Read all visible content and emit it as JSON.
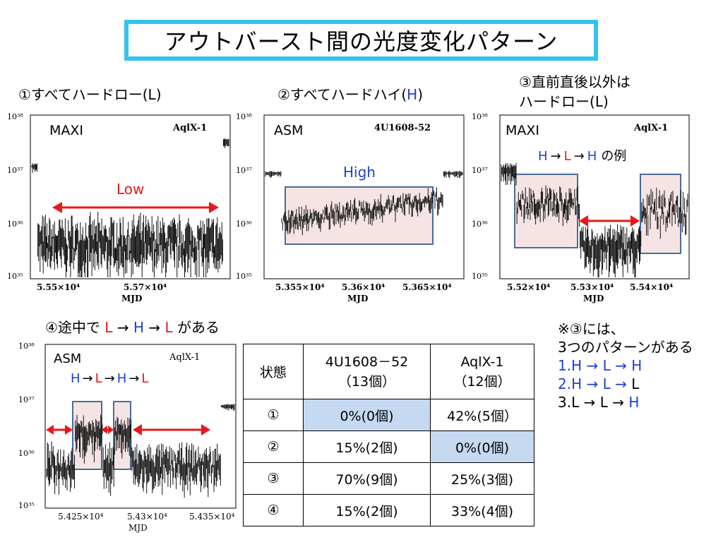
{
  "title": "アウトバースト間の光度変化パターン",
  "labels": {
    "p1": {
      "prefix": "①すべてハードロー(",
      "code": "L",
      "suffix": ")"
    },
    "p2": {
      "prefix": "②すべてハードハイ(",
      "code": "H",
      "suffix": ")"
    },
    "p3_line1": "③直前直後以外は",
    "p3_line2": {
      "prefix": "ハードロー(",
      "code": "L",
      "suffix": ")"
    },
    "p4": {
      "prefix": "④途中で",
      "s1": "L",
      "a1": "→",
      "s2": "H",
      "a2": "→",
      "s3": "L",
      "suffix": "がある"
    }
  },
  "colors": {
    "frame": "#35c3ee",
    "box_border": "#4a6c9a",
    "box_fill": "#f6e4e4",
    "arrow": "#e81818",
    "blue": "#1f3fd0",
    "highlight": "#c5d9f1"
  },
  "chart_data": [
    {
      "type": "scatter",
      "instrument": "MAXI",
      "source": "AqlX-1",
      "ylabel_ticks": [
        "10³⁸",
        "10³⁷",
        "10³⁶",
        "10³⁵"
      ],
      "y_exponents": [
        38,
        37,
        36,
        35
      ],
      "xlabel": "MJD",
      "x_ticks": [
        "5.55×10⁴",
        "5.57×10⁴"
      ],
      "annotation": "Low"
    },
    {
      "type": "scatter",
      "instrument": "ASM",
      "source": "4U1608-52",
      "ylabel_ticks": [
        "10³⁸",
        "10³⁷",
        "10³⁶",
        "10³⁵"
      ],
      "y_exponents": [
        38,
        37,
        36,
        35
      ],
      "xlabel": "MJD",
      "x_ticks": [
        "5.355×10⁴",
        "5.36×10⁴",
        "5.365×10⁴"
      ],
      "annotation": "High"
    },
    {
      "type": "scatter",
      "instrument": "MAXI",
      "source": "AqlX-1",
      "ylabel_ticks": [
        "10³⁸",
        "10³⁷",
        "10³⁶",
        "10³⁵"
      ],
      "y_exponents": [
        38,
        37,
        36,
        35
      ],
      "xlabel": "MJD",
      "x_ticks": [
        "5.52×10⁴",
        "5.53×10⁴",
        "5.54×10⁴"
      ],
      "annotation": {
        "s1": "H",
        "a1": "→",
        "s2": "L",
        "a2": "→",
        "s3": "H",
        "tail": "の例"
      }
    },
    {
      "type": "scatter",
      "instrument": "ASM",
      "source": "AqlX-1",
      "ylabel_ticks": [
        "10³⁸",
        "10³⁷",
        "10³⁶",
        "10³⁵"
      ],
      "y_exponents": [
        38,
        37,
        36,
        35
      ],
      "xlabel": "MJD",
      "x_ticks": [
        "5.425×10⁴",
        "5.43×10⁴",
        "5.435×10⁴"
      ],
      "annotation": {
        "s1": "H",
        "a1": "→",
        "s2": "L",
        "a2": "→",
        "s3": "H",
        "a3": "→",
        "s4": "L"
      }
    }
  ],
  "table": {
    "header": [
      "状態",
      "4U1608－52\n（13個）",
      "AqlX-1\n（12個）"
    ],
    "rows": [
      {
        "state": "①",
        "c1": "0%(0個)",
        "c2": "42%(5個）"
      },
      {
        "state": "②",
        "c1": "15%(2個)",
        "c2": "0%(0個)"
      },
      {
        "state": "③",
        "c1": "70%(9個)",
        "c2": "25%(3個)"
      },
      {
        "state": "④",
        "c1": "15%(2個)",
        "c2": "33%(4個)"
      }
    ]
  },
  "note": {
    "line1": "※③には、",
    "line2": "3つのパターンがある",
    "line3": "1.H → L → H",
    "line4": {
      "a": "2.H → L → ",
      "b": "L"
    },
    "line5": {
      "a": "3.L → L → ",
      "b": "H"
    }
  }
}
